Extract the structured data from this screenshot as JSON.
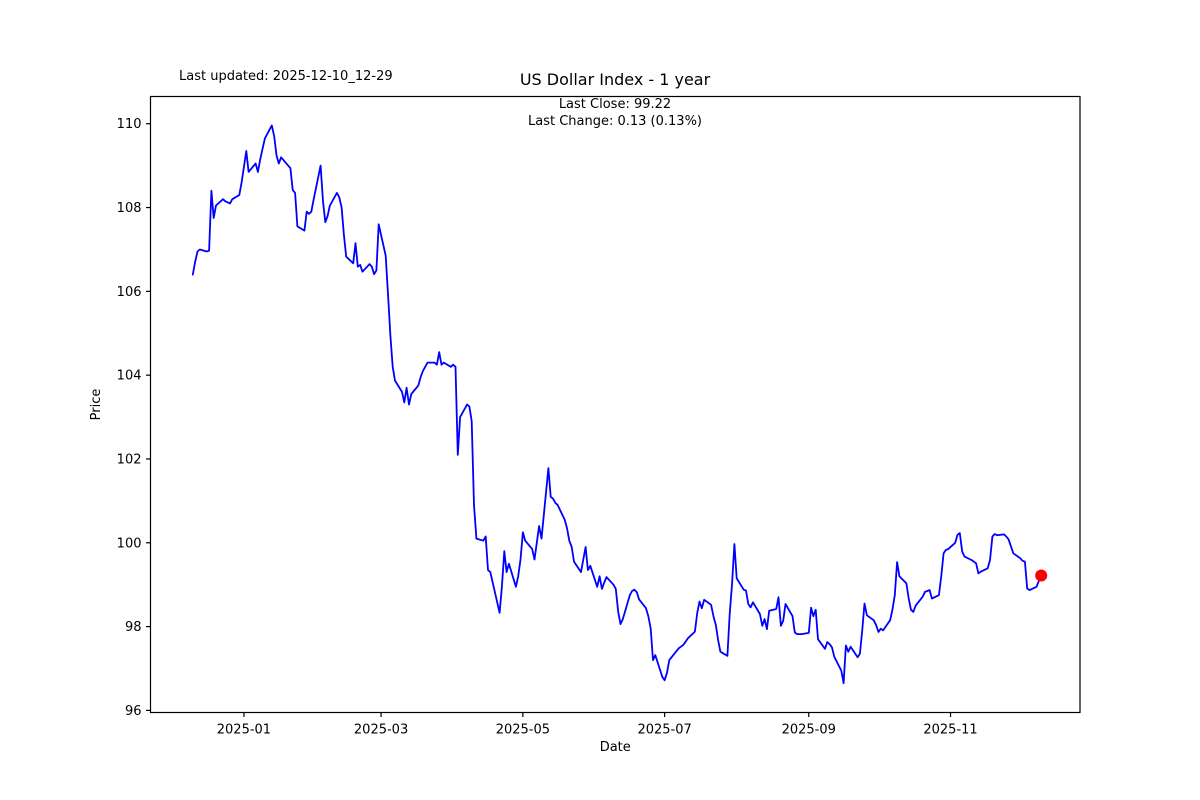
{
  "header": {
    "last_updated": "Last updated: 2025-12-10_12-29"
  },
  "chart_data": {
    "type": "line",
    "title": "US Dollar Index - 1 year",
    "annotations": [
      "Last Close: 99.22",
      "Last Change: 0.13 (0.13%)"
    ],
    "last_updated_note": "Last updated: 2025-12-10_12-29",
    "xlabel": "Date",
    "ylabel": "Price",
    "last_close": 99.22,
    "last_change": 0.13,
    "last_change_pct_text": "0.13%",
    "line_color": "#0000ff",
    "marker_color": "#ff0000",
    "axis_color": "#000000",
    "background_color": "#ffffff",
    "grid": false,
    "legend": "none",
    "ylim": [
      95.95,
      110.65
    ],
    "yticks": [
      96,
      98,
      100,
      102,
      104,
      106,
      108,
      110
    ],
    "xticks": [
      {
        "date": "2025-01-01",
        "label": "2025-01"
      },
      {
        "date": "2025-03-01",
        "label": "2025-03"
      },
      {
        "date": "2025-05-01",
        "label": "2025-05"
      },
      {
        "date": "2025-07-01",
        "label": "2025-07"
      },
      {
        "date": "2025-09-01",
        "label": "2025-09"
      },
      {
        "date": "2025-11-01",
        "label": "2025-11"
      }
    ],
    "xlim_days": [
      -18.2,
      381.7
    ],
    "marker_point": {
      "date": "2025-12-10",
      "value": 99.22
    },
    "series": [
      {
        "name": "US Dollar Index",
        "dates": [
          "2024-12-10",
          "2024-12-11",
          "2024-12-12",
          "2024-12-13",
          "2024-12-16",
          "2024-12-17",
          "2024-12-18",
          "2024-12-19",
          "2024-12-20",
          "2024-12-23",
          "2024-12-24",
          "2024-12-26",
          "2024-12-27",
          "2024-12-30",
          "2024-12-31",
          "2025-01-02",
          "2025-01-03",
          "2025-01-06",
          "2025-01-07",
          "2025-01-08",
          "2025-01-09",
          "2025-01-10",
          "2025-01-13",
          "2025-01-14",
          "2025-01-15",
          "2025-01-16",
          "2025-01-17",
          "2025-01-21",
          "2025-01-22",
          "2025-01-23",
          "2025-01-24",
          "2025-01-27",
          "2025-01-28",
          "2025-01-29",
          "2025-01-30",
          "2025-01-31",
          "2025-02-03",
          "2025-02-04",
          "2025-02-05",
          "2025-02-06",
          "2025-02-07",
          "2025-02-10",
          "2025-02-11",
          "2025-02-12",
          "2025-02-13",
          "2025-02-14",
          "2025-02-17",
          "2025-02-18",
          "2025-02-19",
          "2025-02-20",
          "2025-02-21",
          "2025-02-24",
          "2025-02-25",
          "2025-02-26",
          "2025-02-27",
          "2025-02-28",
          "2025-03-03",
          "2025-03-04",
          "2025-03-05",
          "2025-03-06",
          "2025-03-07",
          "2025-03-10",
          "2025-03-11",
          "2025-03-12",
          "2025-03-13",
          "2025-03-14",
          "2025-03-17",
          "2025-03-18",
          "2025-03-19",
          "2025-03-20",
          "2025-03-21",
          "2025-03-24",
          "2025-03-25",
          "2025-03-26",
          "2025-03-27",
          "2025-03-28",
          "2025-03-31",
          "2025-04-01",
          "2025-04-02",
          "2025-04-03",
          "2025-04-04",
          "2025-04-07",
          "2025-04-08",
          "2025-04-09",
          "2025-04-10",
          "2025-04-11",
          "2025-04-14",
          "2025-04-15",
          "2025-04-16",
          "2025-04-17",
          "2025-04-21",
          "2025-04-22",
          "2025-04-23",
          "2025-04-24",
          "2025-04-25",
          "2025-04-28",
          "2025-04-29",
          "2025-04-30",
          "2025-05-01",
          "2025-05-02",
          "2025-05-05",
          "2025-05-06",
          "2025-05-07",
          "2025-05-08",
          "2025-05-09",
          "2025-05-12",
          "2025-05-13",
          "2025-05-14",
          "2025-05-15",
          "2025-05-16",
          "2025-05-19",
          "2025-05-20",
          "2025-05-21",
          "2025-05-22",
          "2025-05-23",
          "2025-05-26",
          "2025-05-27",
          "2025-05-28",
          "2025-05-29",
          "2025-05-30",
          "2025-06-02",
          "2025-06-03",
          "2025-06-04",
          "2025-06-05",
          "2025-06-06",
          "2025-06-09",
          "2025-06-10",
          "2025-06-11",
          "2025-06-12",
          "2025-06-13",
          "2025-06-16",
          "2025-06-17",
          "2025-06-18",
          "2025-06-19",
          "2025-06-20",
          "2025-06-23",
          "2025-06-24",
          "2025-06-25",
          "2025-06-26",
          "2025-06-27",
          "2025-06-30",
          "2025-07-01",
          "2025-07-02",
          "2025-07-03",
          "2025-07-07",
          "2025-07-08",
          "2025-07-09",
          "2025-07-10",
          "2025-07-11",
          "2025-07-14",
          "2025-07-15",
          "2025-07-16",
          "2025-07-17",
          "2025-07-18",
          "2025-07-21",
          "2025-07-22",
          "2025-07-23",
          "2025-07-24",
          "2025-07-25",
          "2025-07-28",
          "2025-07-29",
          "2025-07-30",
          "2025-07-31",
          "2025-08-01",
          "2025-08-04",
          "2025-08-05",
          "2025-08-06",
          "2025-08-07",
          "2025-08-08",
          "2025-08-11",
          "2025-08-12",
          "2025-08-13",
          "2025-08-14",
          "2025-08-15",
          "2025-08-18",
          "2025-08-19",
          "2025-08-20",
          "2025-08-21",
          "2025-08-22",
          "2025-08-25",
          "2025-08-26",
          "2025-08-27",
          "2025-08-28",
          "2025-08-29",
          "2025-09-01",
          "2025-09-02",
          "2025-09-03",
          "2025-09-04",
          "2025-09-05",
          "2025-09-08",
          "2025-09-09",
          "2025-09-10",
          "2025-09-11",
          "2025-09-12",
          "2025-09-15",
          "2025-09-16",
          "2025-09-17",
          "2025-09-18",
          "2025-09-19",
          "2025-09-22",
          "2025-09-23",
          "2025-09-24",
          "2025-09-25",
          "2025-09-26",
          "2025-09-29",
          "2025-09-30",
          "2025-10-01",
          "2025-10-02",
          "2025-10-03",
          "2025-10-06",
          "2025-10-07",
          "2025-10-08",
          "2025-10-09",
          "2025-10-10",
          "2025-10-13",
          "2025-10-14",
          "2025-10-15",
          "2025-10-16",
          "2025-10-17",
          "2025-10-20",
          "2025-10-21",
          "2025-10-22",
          "2025-10-23",
          "2025-10-24",
          "2025-10-27",
          "2025-10-28",
          "2025-10-29",
          "2025-10-30",
          "2025-10-31",
          "2025-11-03",
          "2025-11-04",
          "2025-11-05",
          "2025-11-06",
          "2025-11-07",
          "2025-11-10",
          "2025-11-11",
          "2025-11-12",
          "2025-11-13",
          "2025-11-14",
          "2025-11-17",
          "2025-11-18",
          "2025-11-19",
          "2025-11-20",
          "2025-11-21",
          "2025-11-24",
          "2025-11-25",
          "2025-11-26",
          "2025-11-28",
          "2025-12-01",
          "2025-12-02",
          "2025-12-03",
          "2025-12-04",
          "2025-12-05",
          "2025-12-08",
          "2025-12-09",
          "2025-12-10"
        ],
        "values": [
          106.4,
          106.7,
          106.95,
          107.0,
          106.95,
          106.97,
          108.4,
          107.75,
          108.05,
          108.2,
          108.15,
          108.1,
          108.2,
          108.3,
          108.6,
          109.35,
          108.85,
          109.05,
          108.85,
          109.15,
          109.4,
          109.65,
          109.96,
          109.7,
          109.25,
          109.05,
          109.2,
          108.94,
          108.42,
          108.35,
          107.55,
          107.45,
          107.9,
          107.85,
          107.9,
          108.2,
          109.0,
          108.15,
          107.65,
          107.8,
          108.05,
          108.35,
          108.25,
          108.0,
          107.35,
          106.83,
          106.67,
          107.15,
          106.59,
          106.63,
          106.47,
          106.65,
          106.59,
          106.41,
          106.5,
          107.6,
          106.85,
          105.94,
          104.94,
          104.2,
          103.87,
          103.6,
          103.35,
          103.7,
          103.3,
          103.55,
          103.75,
          103.95,
          104.1,
          104.2,
          104.3,
          104.3,
          104.25,
          104.55,
          104.25,
          104.3,
          104.2,
          104.25,
          104.2,
          102.1,
          103.0,
          103.3,
          103.25,
          102.9,
          100.9,
          100.1,
          100.05,
          100.15,
          99.35,
          99.3,
          98.33,
          98.95,
          99.8,
          99.3,
          99.5,
          98.95,
          99.2,
          99.6,
          100.25,
          100.05,
          99.85,
          99.6,
          100.0,
          100.4,
          100.1,
          101.78,
          101.1,
          101.05,
          100.95,
          100.9,
          100.55,
          100.35,
          100.05,
          99.9,
          99.55,
          99.3,
          99.6,
          99.9,
          99.35,
          99.45,
          98.95,
          99.2,
          98.9,
          99.05,
          99.18,
          99.0,
          98.9,
          98.35,
          98.06,
          98.18,
          98.75,
          98.85,
          98.88,
          98.82,
          98.65,
          98.44,
          98.24,
          97.95,
          97.2,
          97.32,
          96.8,
          96.72,
          96.9,
          97.2,
          97.48,
          97.52,
          97.56,
          97.64,
          97.72,
          97.88,
          98.32,
          98.6,
          98.44,
          98.64,
          98.52,
          98.24,
          98.04,
          97.68,
          97.4,
          97.3,
          98.3,
          99.0,
          99.97,
          99.15,
          98.88,
          98.86,
          98.54,
          98.46,
          98.58,
          98.3,
          98.02,
          98.18,
          97.94,
          98.38,
          98.42,
          98.7,
          98.02,
          98.14,
          98.54,
          98.25,
          97.86,
          97.82,
          97.82,
          97.82,
          97.85,
          98.45,
          98.25,
          98.4,
          97.7,
          97.47,
          97.63,
          97.58,
          97.5,
          97.28,
          96.95,
          96.65,
          97.55,
          97.4,
          97.52,
          97.27,
          97.35,
          97.9,
          98.55,
          98.27,
          98.15,
          98.03,
          97.87,
          97.95,
          97.91,
          98.15,
          98.4,
          98.75,
          99.54,
          99.2,
          99.03,
          98.67,
          98.4,
          98.35,
          98.5,
          98.71,
          98.83,
          98.85,
          98.87,
          98.67,
          98.75,
          99.19,
          99.75,
          99.83,
          99.85,
          100.0,
          100.19,
          100.23,
          99.79,
          99.67,
          99.59,
          99.55,
          99.51,
          99.27,
          99.31,
          99.39,
          99.59,
          100.15,
          100.21,
          100.18,
          100.2,
          100.15,
          100.08,
          99.75,
          99.63,
          99.57,
          99.55,
          98.91,
          98.87,
          98.95,
          99.09,
          99.22
        ]
      }
    ]
  }
}
